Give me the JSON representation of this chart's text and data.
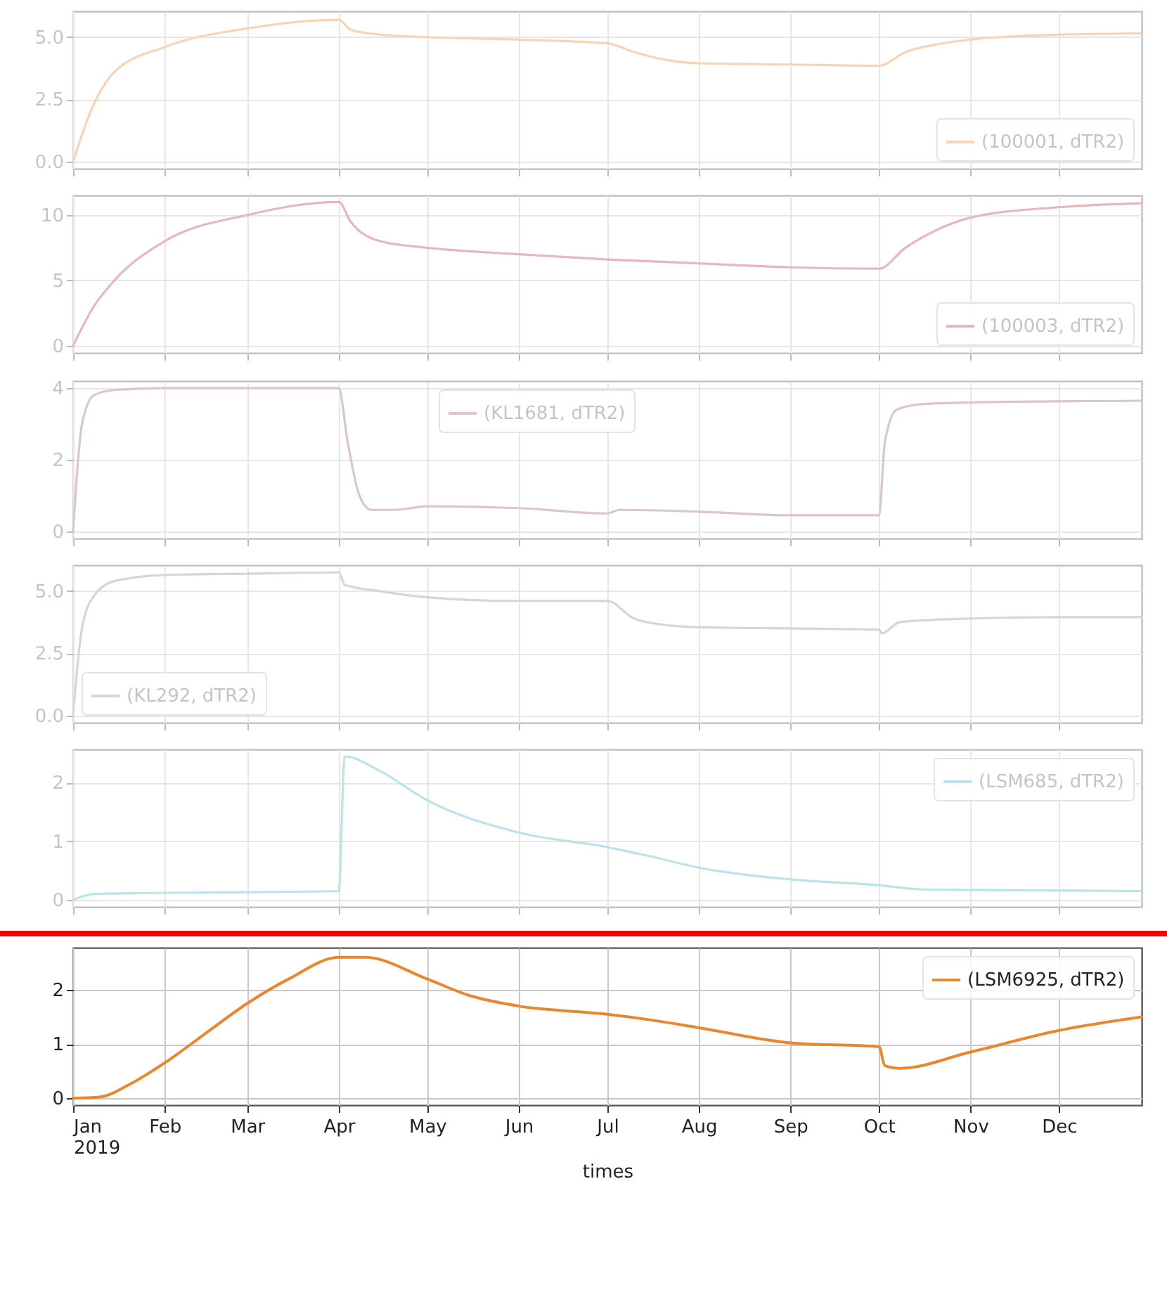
{
  "chart_data": [
    {
      "type": "line",
      "x": [
        "2019-01-01",
        "2019-01-08",
        "2019-01-15",
        "2019-02-01",
        "2019-03-01",
        "2019-04-01",
        "2019-04-05",
        "2019-04-15",
        "2019-05-01",
        "2019-06-01",
        "2019-07-01",
        "2019-07-10",
        "2019-07-20",
        "2019-08-01",
        "2019-09-01",
        "2019-10-01",
        "2019-10-10",
        "2019-10-20",
        "2019-11-01",
        "2019-12-01",
        "2019-12-29"
      ],
      "series": [
        {
          "name": "(100001, dTR2)",
          "color": "#f9d3b4",
          "values": [
            0,
            2.3,
            3.6,
            4.6,
            5.35,
            5.7,
            5.3,
            5.1,
            5.0,
            4.9,
            4.75,
            4.4,
            4.1,
            3.95,
            3.9,
            3.85,
            4.4,
            4.7,
            4.9,
            5.1,
            5.15
          ]
        }
      ],
      "xlim": [
        "2019-01-01",
        "2019-12-29"
      ],
      "ylim": [
        -0.29,
        6.04
      ],
      "yticks": [
        {
          "value": 0,
          "label": "0.0"
        },
        {
          "value": 2.5,
          "label": "2.5"
        },
        {
          "value": 5,
          "label": "5.0"
        }
      ],
      "grid": true,
      "legend": "bottom right",
      "tick_labels": "y"
    },
    {
      "type": "line",
      "x": [
        "2019-01-01",
        "2019-01-08",
        "2019-01-15",
        "2019-02-01",
        "2019-03-01",
        "2019-04-01",
        "2019-04-05",
        "2019-04-15",
        "2019-05-01",
        "2019-06-01",
        "2019-07-01",
        "2019-08-01",
        "2019-09-01",
        "2019-10-01",
        "2019-10-10",
        "2019-10-20",
        "2019-11-01",
        "2019-12-01",
        "2019-12-29"
      ],
      "series": [
        {
          "name": "(100003, dTR2)",
          "color": "#e8b8b8",
          "values": [
            0,
            3.0,
            5.0,
            8.0,
            10.0,
            11.0,
            9.5,
            8.0,
            7.5,
            7.0,
            6.6,
            6.3,
            6.0,
            5.9,
            7.5,
            8.8,
            9.8,
            10.6,
            10.9
          ]
        }
      ],
      "xlim": [
        "2019-01-01",
        "2019-12-29"
      ],
      "ylim": [
        -0.55,
        11.5
      ],
      "yticks": [
        0,
        5,
        10
      ],
      "grid": true,
      "legend": "bottom right",
      "tick_labels": "y"
    },
    {
      "type": "line",
      "x": [
        "2019-01-01",
        "2019-01-04",
        "2019-01-08",
        "2019-01-15",
        "2019-02-01",
        "2019-04-01",
        "2019-04-04",
        "2019-04-08",
        "2019-04-12",
        "2019-04-20",
        "2019-05-01",
        "2019-06-01",
        "2019-07-01",
        "2019-07-05",
        "2019-08-01",
        "2019-09-01",
        "2019-10-01",
        "2019-10-03",
        "2019-10-07",
        "2019-10-15",
        "2019-11-01",
        "2019-12-29"
      ],
      "series": [
        {
          "name": "(KL1681, dTR2)",
          "color": "#dcc6c6",
          "values": [
            0,
            3.0,
            3.8,
            3.95,
            4.0,
            4.0,
            2.5,
            1.0,
            0.6,
            0.6,
            0.7,
            0.65,
            0.5,
            0.6,
            0.55,
            0.45,
            0.45,
            2.5,
            3.4,
            3.55,
            3.6,
            3.65
          ]
        }
      ],
      "xlim": [
        "2019-01-01",
        "2019-12-29"
      ],
      "ylim": [
        -0.2,
        4.2
      ],
      "yticks": [
        0,
        2,
        4
      ],
      "grid": true,
      "legend": "top",
      "tick_labels": "y"
    },
    {
      "type": "line",
      "x": [
        "2019-01-01",
        "2019-01-04",
        "2019-01-08",
        "2019-01-15",
        "2019-02-01",
        "2019-03-01",
        "2019-04-01",
        "2019-04-03",
        "2019-04-15",
        "2019-05-01",
        "2019-06-01",
        "2019-07-01",
        "2019-07-10",
        "2019-07-20",
        "2019-08-01",
        "2019-09-01",
        "2019-10-01",
        "2019-10-02",
        "2019-10-08",
        "2019-11-01",
        "2019-12-01",
        "2019-12-29"
      ],
      "series": [
        {
          "name": "(KL292, dTR2)",
          "color": "#d6d6d6",
          "values": [
            0,
            3.5,
            4.8,
            5.4,
            5.65,
            5.7,
            5.75,
            5.25,
            5.0,
            4.75,
            4.6,
            4.6,
            3.9,
            3.65,
            3.55,
            3.5,
            3.45,
            3.3,
            3.75,
            3.9,
            3.95,
            3.95
          ]
        }
      ],
      "xlim": [
        "2019-01-01",
        "2019-12-29"
      ],
      "ylim": [
        -0.29,
        6.04
      ],
      "yticks": [
        {
          "value": 0,
          "label": "0.0"
        },
        {
          "value": 2.5,
          "label": "2.5"
        },
        {
          "value": 5,
          "label": "5.0"
        }
      ],
      "grid": true,
      "legend": "bottom left",
      "tick_labels": "y"
    },
    {
      "type": "line",
      "x": [
        "2019-01-01",
        "2019-01-08",
        "2019-02-01",
        "2019-04-01",
        "2019-04-03",
        "2019-04-15",
        "2019-05-01",
        "2019-06-01",
        "2019-07-01",
        "2019-07-15",
        "2019-08-01",
        "2019-09-01",
        "2019-10-01",
        "2019-10-15",
        "2019-11-01",
        "2019-12-29"
      ],
      "series": [
        {
          "name": "(LSM685, dTR2)",
          "color": "#b8e4ea",
          "values": [
            0,
            0.1,
            0.12,
            0.15,
            2.45,
            2.2,
            1.7,
            1.15,
            0.9,
            0.75,
            0.55,
            0.35,
            0.25,
            0.18,
            0.17,
            0.15
          ]
        }
      ],
      "xlim": [
        "2019-01-01",
        "2019-12-29"
      ],
      "ylim": [
        -0.12,
        2.57
      ],
      "yticks": [
        0,
        1,
        2
      ],
      "grid": true,
      "legend": "top right",
      "tick_labels": "y"
    },
    {
      "type": "line",
      "x": [
        "2019-01-01",
        "2019-01-10",
        "2019-01-20",
        "2019-02-01",
        "2019-02-15",
        "2019-03-01",
        "2019-03-15",
        "2019-04-01",
        "2019-04-10",
        "2019-05-01",
        "2019-05-15",
        "2019-06-01",
        "2019-07-01",
        "2019-07-15",
        "2019-08-01",
        "2019-09-01",
        "2019-10-01",
        "2019-10-03",
        "2019-10-08",
        "2019-11-01",
        "2019-12-01",
        "2019-12-29"
      ],
      "series": [
        {
          "name": "(LSM6925, dTR2)",
          "color": "#e8872e",
          "values": [
            0,
            0.02,
            0.25,
            0.65,
            1.2,
            1.75,
            2.2,
            2.6,
            2.6,
            2.2,
            1.9,
            1.7,
            1.55,
            1.45,
            1.3,
            1.02,
            0.95,
            0.6,
            0.55,
            0.85,
            1.25,
            1.5
          ]
        }
      ],
      "xlim": [
        "2019-01-01",
        "2019-12-29"
      ],
      "ylim": [
        -0.13,
        2.78
      ],
      "yticks": [
        0,
        1,
        2
      ],
      "xticks": [
        {
          "value": "2019-01-01",
          "label": "Jan\n2019"
        },
        {
          "value": "2019-02-01",
          "label": "Feb"
        },
        {
          "value": "2019-03-01",
          "label": "Mar"
        },
        {
          "value": "2019-04-01",
          "label": "Apr"
        },
        {
          "value": "2019-05-01",
          "label": "May"
        },
        {
          "value": "2019-06-01",
          "label": "Jun"
        },
        {
          "value": "2019-07-01",
          "label": "Jul"
        },
        {
          "value": "2019-08-01",
          "label": "Aug"
        },
        {
          "value": "2019-09-01",
          "label": "Sep"
        },
        {
          "value": "2019-10-01",
          "label": "Oct"
        },
        {
          "value": "2019-11-01",
          "label": "Nov"
        },
        {
          "value": "2019-12-01",
          "label": "Dec"
        }
      ],
      "xlabel": "times",
      "grid": true,
      "legend": "top right"
    }
  ]
}
